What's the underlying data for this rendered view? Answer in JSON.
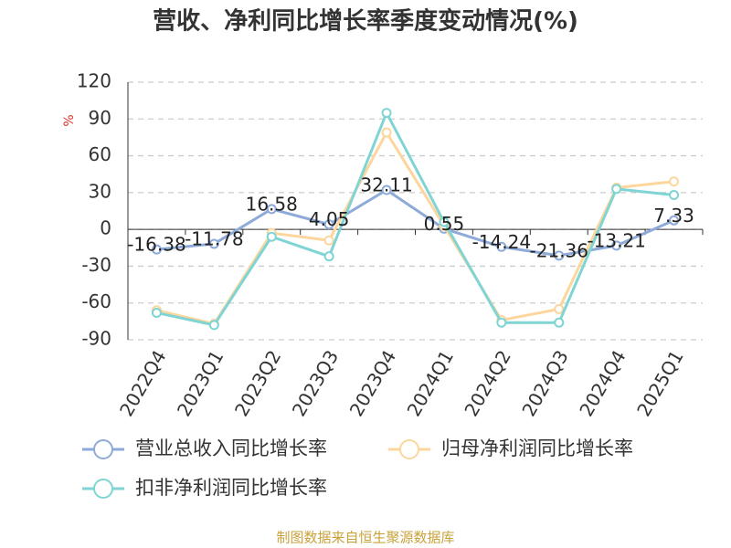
{
  "chart_data": {
    "type": "line",
    "title": "营收、净利同比增长率季度变动情况(%)",
    "y_label": "%",
    "source": "制图数据来自恒生聚源数据库",
    "categories": [
      "2022Q4",
      "2023Q1",
      "2023Q2",
      "2023Q3",
      "2023Q4",
      "2024Q1",
      "2024Q2",
      "2024Q3",
      "2024Q4",
      "2025Q1"
    ],
    "series": [
      {
        "name": "营业总收入同比增长率",
        "color": "#8eaad9",
        "values": [
          -16.38,
          -11.78,
          16.58,
          4.05,
          32.11,
          0.55,
          -14.24,
          -21.36,
          -13.21,
          7.33
        ],
        "show_labels": true
      },
      {
        "name": "归母净利润同比增长率",
        "color": "#fcd69c",
        "values": [
          -66,
          -77,
          -3,
          -9,
          79,
          3,
          -74,
          -65,
          34,
          39
        ]
      },
      {
        "name": "扣非净利润同比增长率",
        "color": "#80d4d4",
        "values": [
          -68,
          -78,
          -6,
          -22,
          95,
          6,
          -76,
          -76,
          33,
          28
        ]
      }
    ],
    "ylim": [
      -90,
      120
    ],
    "yticks": [
      -90,
      -60,
      -30,
      0,
      30,
      60,
      90,
      120
    ],
    "grid": true
  }
}
